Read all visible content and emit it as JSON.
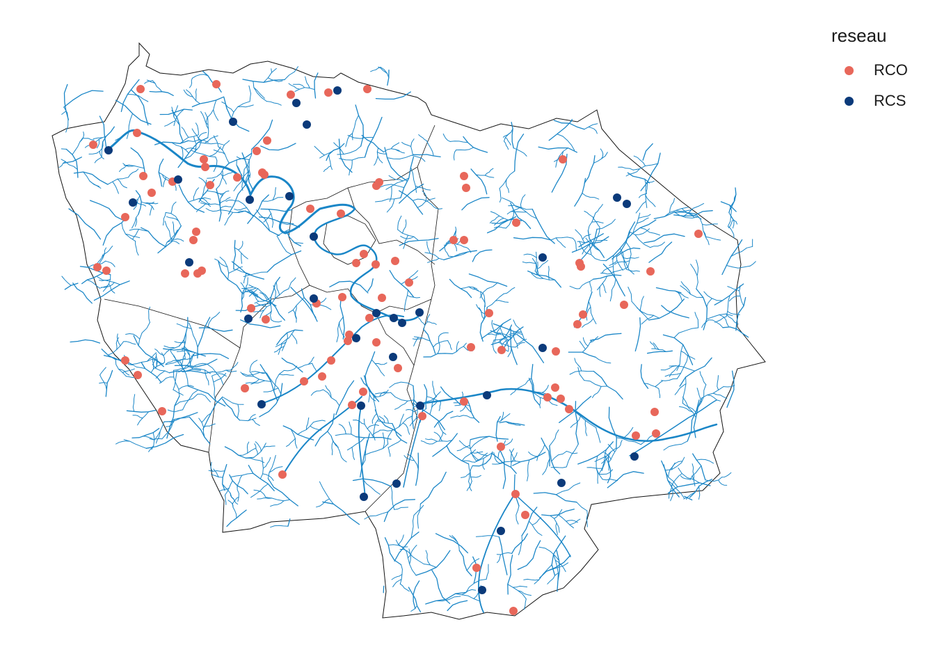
{
  "legend": {
    "title": "reseau",
    "items": [
      {
        "label": "RCO",
        "color": "#e8675a"
      },
      {
        "label": "RCS",
        "color": "#0b3a7a"
      }
    ]
  },
  "colors": {
    "river": "#1a86c7",
    "boundary": "#111111",
    "background": "#ffffff"
  }
}
